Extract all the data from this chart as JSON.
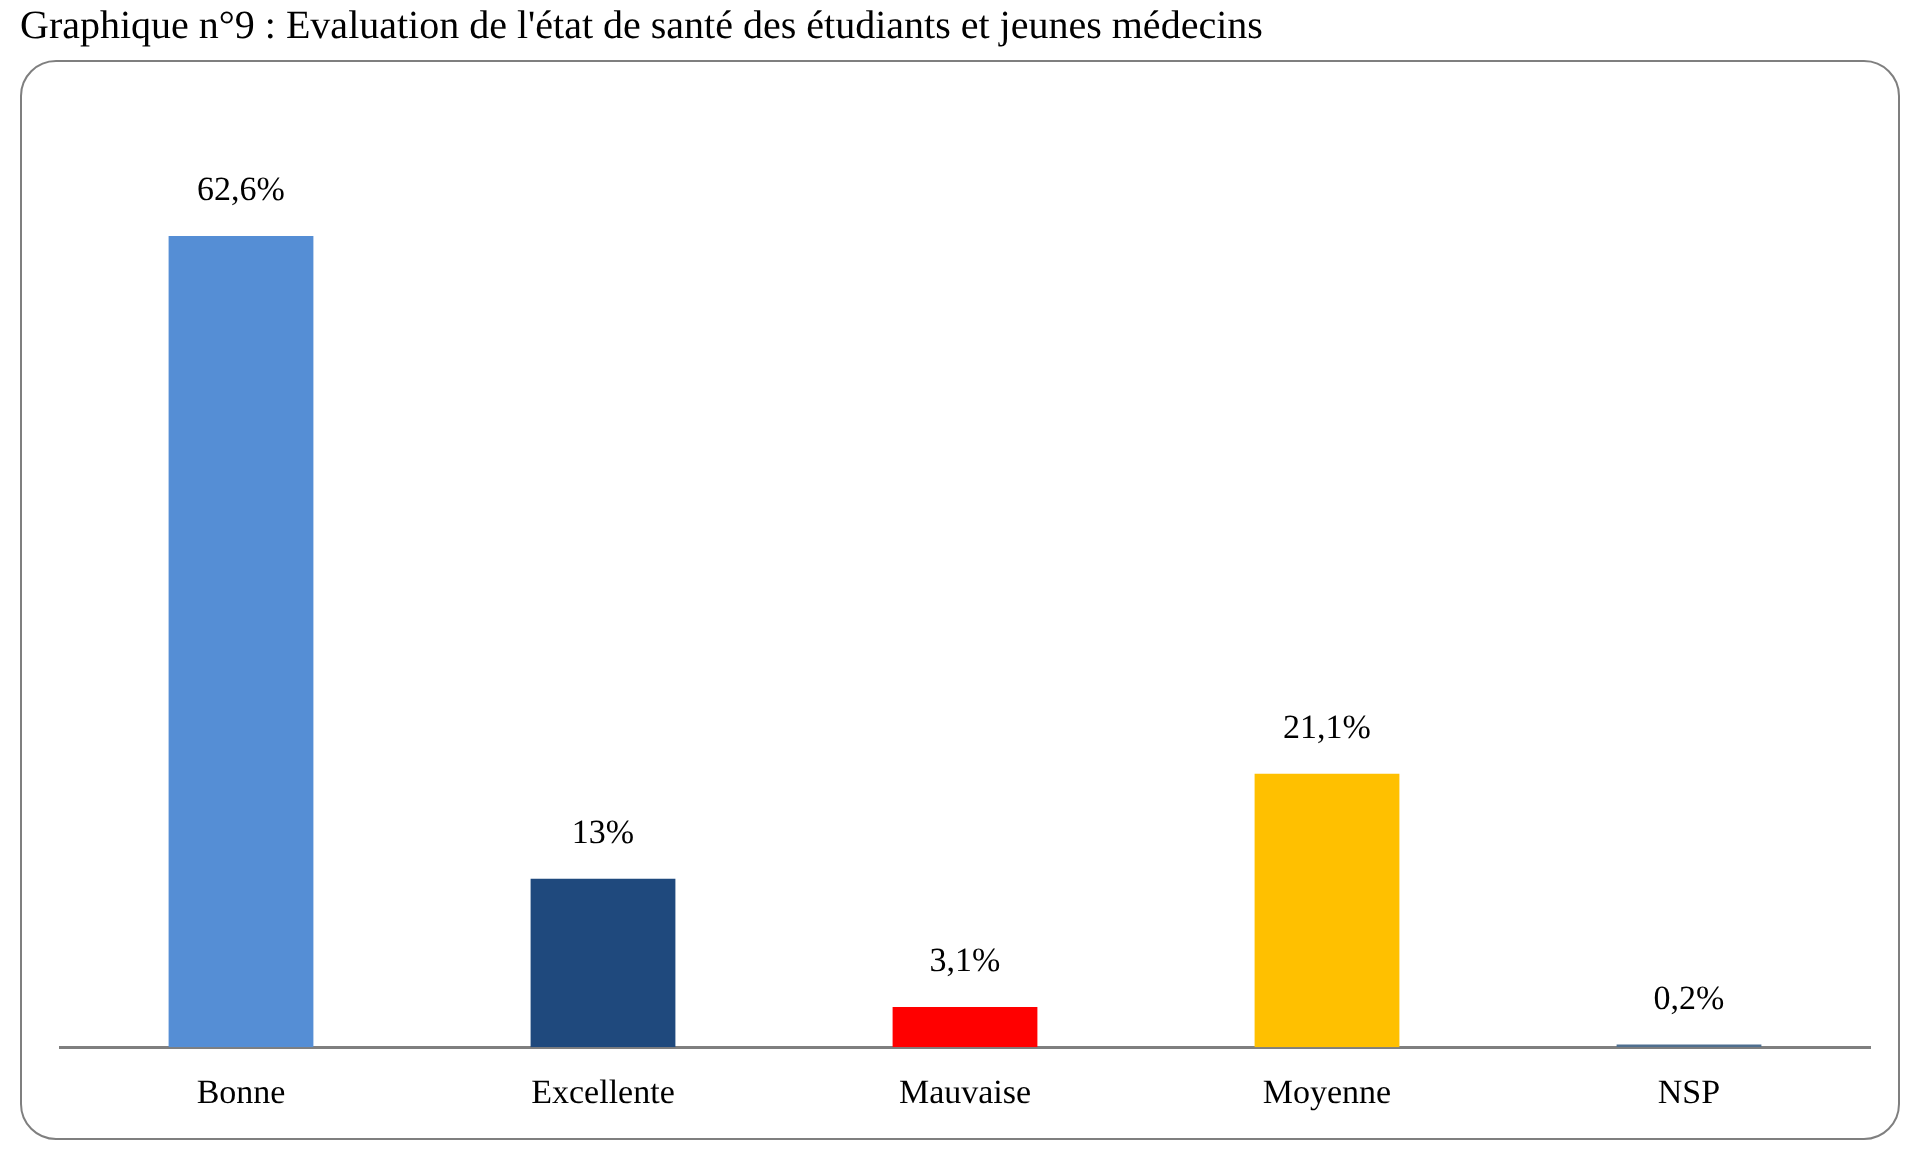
{
  "chart_data": {
    "type": "bar",
    "title": "Graphique n°9 : Evaluation de l'état de santé des étudiants et jeunes médecins",
    "categories": [
      "Bonne",
      "Excellente",
      "Mauvaise",
      "Moyenne",
      "NSP"
    ],
    "values": [
      62.6,
      13,
      3.1,
      21.1,
      0.2
    ],
    "colors": [
      "#558ed5",
      "#1f497d",
      "#ff0000",
      "#ffc000",
      "#4f6f8f"
    ],
    "value_labels": [
      "62,6%",
      "13%",
      "3,1%",
      "21,1%",
      "0,2%"
    ],
    "grid": false,
    "legend": false
  }
}
